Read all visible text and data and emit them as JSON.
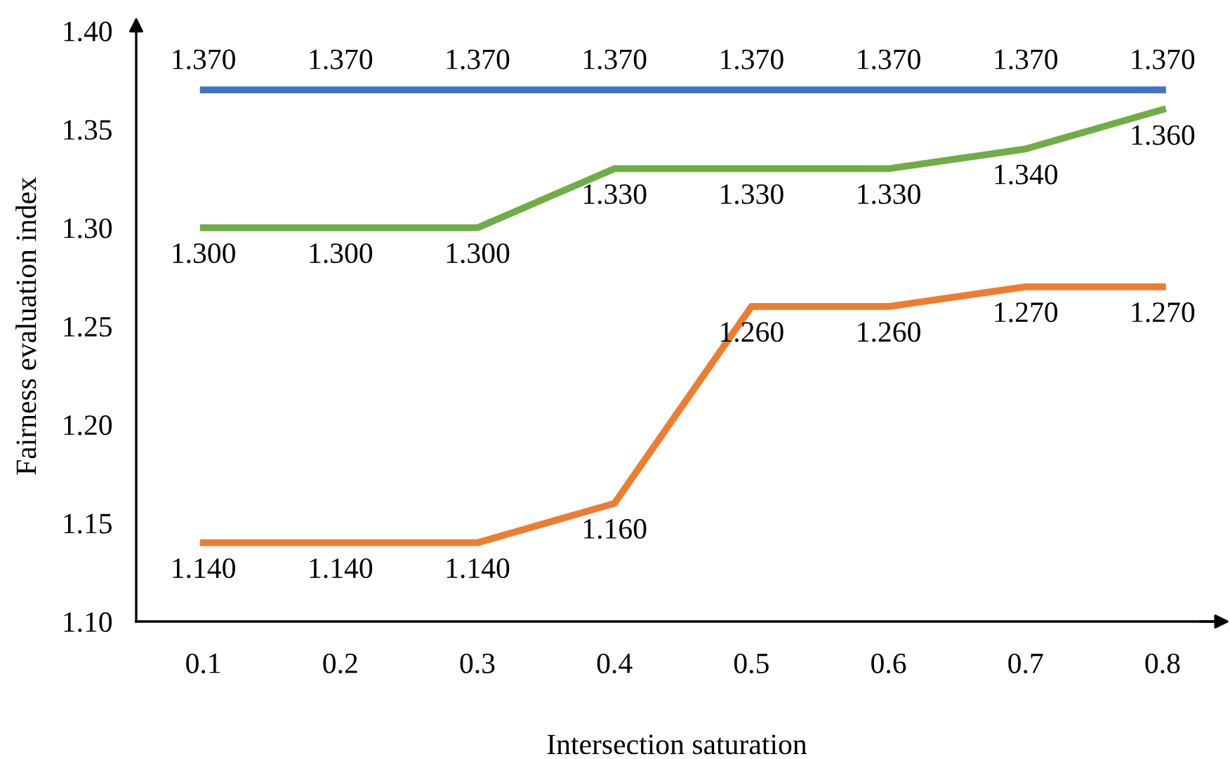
{
  "chart_data": {
    "type": "line",
    "xlabel": "Intersection saturation",
    "ylabel": "Fairness evaluation index",
    "categories": [
      "0.1",
      "0.2",
      "0.3",
      "0.4",
      "0.5",
      "0.6",
      "0.7",
      "0.8"
    ],
    "series": [
      {
        "color": "#4472c4",
        "values": [
          1.37,
          1.37,
          1.37,
          1.37,
          1.37,
          1.37,
          1.37,
          1.37
        ],
        "value_labels": [
          "1.370",
          "1.370",
          "1.370",
          "1.370",
          "1.370",
          "1.370",
          "1.370",
          "1.370"
        ]
      },
      {
        "color": "#70ad47",
        "values": [
          1.3,
          1.3,
          1.3,
          1.33,
          1.33,
          1.33,
          1.34,
          1.36
        ],
        "value_labels": [
          "1.300",
          "1.300",
          "1.300",
          "1.330",
          "1.330",
          "1.330",
          "1.340",
          "1.360"
        ]
      },
      {
        "color": "#ed7d31",
        "values": [
          1.14,
          1.14,
          1.14,
          1.16,
          1.26,
          1.26,
          1.27,
          1.27
        ],
        "value_labels": [
          "1.140",
          "1.140",
          "1.140",
          "1.160",
          "1.260",
          "1.260",
          "1.270",
          "1.270"
        ]
      }
    ],
    "ylim": [
      1.1,
      1.4
    ],
    "yticks": [
      {
        "value": 1.1,
        "label": "1.10"
      },
      {
        "value": 1.15,
        "label": "1.15"
      },
      {
        "value": 1.2,
        "label": "1.20"
      },
      {
        "value": 1.25,
        "label": "1.25"
      },
      {
        "value": 1.3,
        "label": "1.30"
      },
      {
        "value": 1.35,
        "label": "1.35"
      },
      {
        "value": 1.4,
        "label": "1.40"
      }
    ],
    "grid": false,
    "legend": false,
    "marker": "none",
    "line_style": "solid"
  }
}
